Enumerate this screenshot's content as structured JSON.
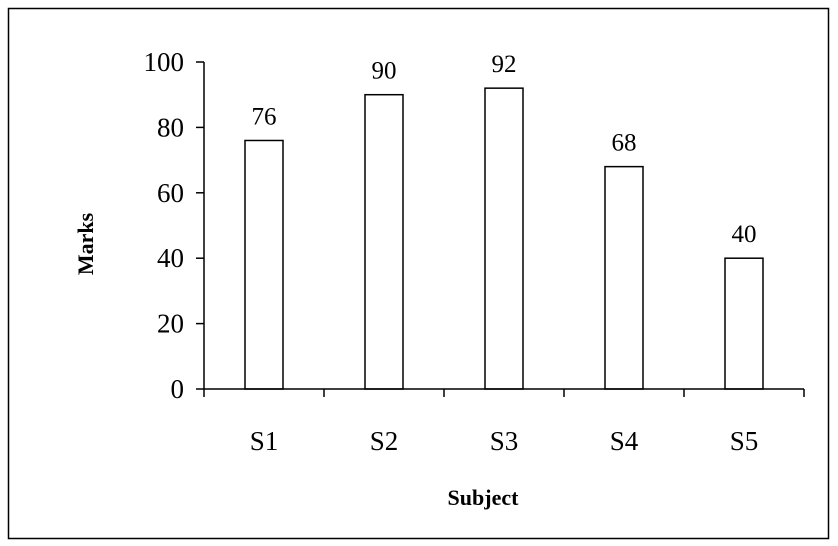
{
  "chart_data": {
    "type": "bar",
    "categories": [
      "S1",
      "S2",
      "S3",
      "S4",
      "S5"
    ],
    "values": [
      76,
      90,
      92,
      68,
      40
    ],
    "xlabel": "Subject",
    "ylabel": "Marks",
    "ylim": [
      0,
      100
    ],
    "yticks": [
      0,
      20,
      40,
      60,
      80,
      100
    ],
    "data_labels": true,
    "grid": false,
    "legend": "none",
    "bar_fill": "#ffffff",
    "bar_stroke": "#000000"
  }
}
